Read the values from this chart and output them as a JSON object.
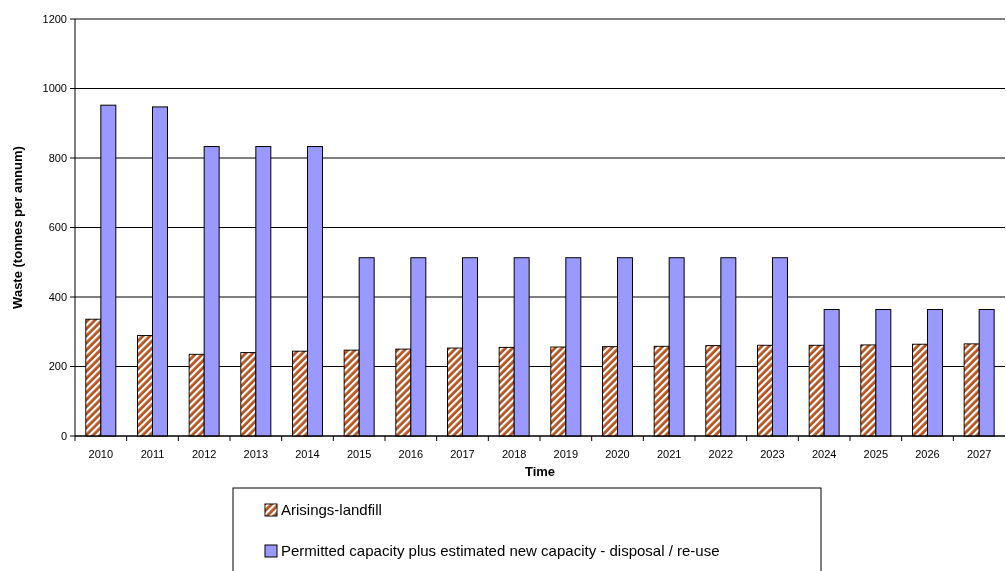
{
  "chart_data": {
    "type": "bar",
    "xlabel": "Time",
    "ylabel": "Waste (tonnes per annum)",
    "categories": [
      "2010",
      "2011",
      "2012",
      "2013",
      "2014",
      "2015",
      "2016",
      "2017",
      "2018",
      "2019",
      "2020",
      "2021",
      "2022",
      "2023",
      "2024",
      "2025",
      "2026",
      "2027"
    ],
    "series": [
      {
        "name": "Arisings-landfill",
        "color": "#b5531f",
        "values": [
          336,
          289,
          235,
          240,
          244,
          247,
          250,
          253,
          255,
          256,
          257,
          258,
          260,
          261,
          261,
          262,
          264,
          265
        ]
      },
      {
        "name": "Permitted capacity plus estimated new capacity - disposal / re-use",
        "color": "#9999ff",
        "values": [
          952,
          947,
          833,
          833,
          833,
          513,
          513,
          513,
          513,
          513,
          513,
          513,
          513,
          513,
          364,
          364,
          364,
          364
        ]
      }
    ],
    "ylim": [
      0,
      1200
    ],
    "yticks": [
      0,
      200,
      400,
      600,
      800,
      1000,
      1200
    ],
    "grid": "y",
    "legend": "bottom"
  }
}
